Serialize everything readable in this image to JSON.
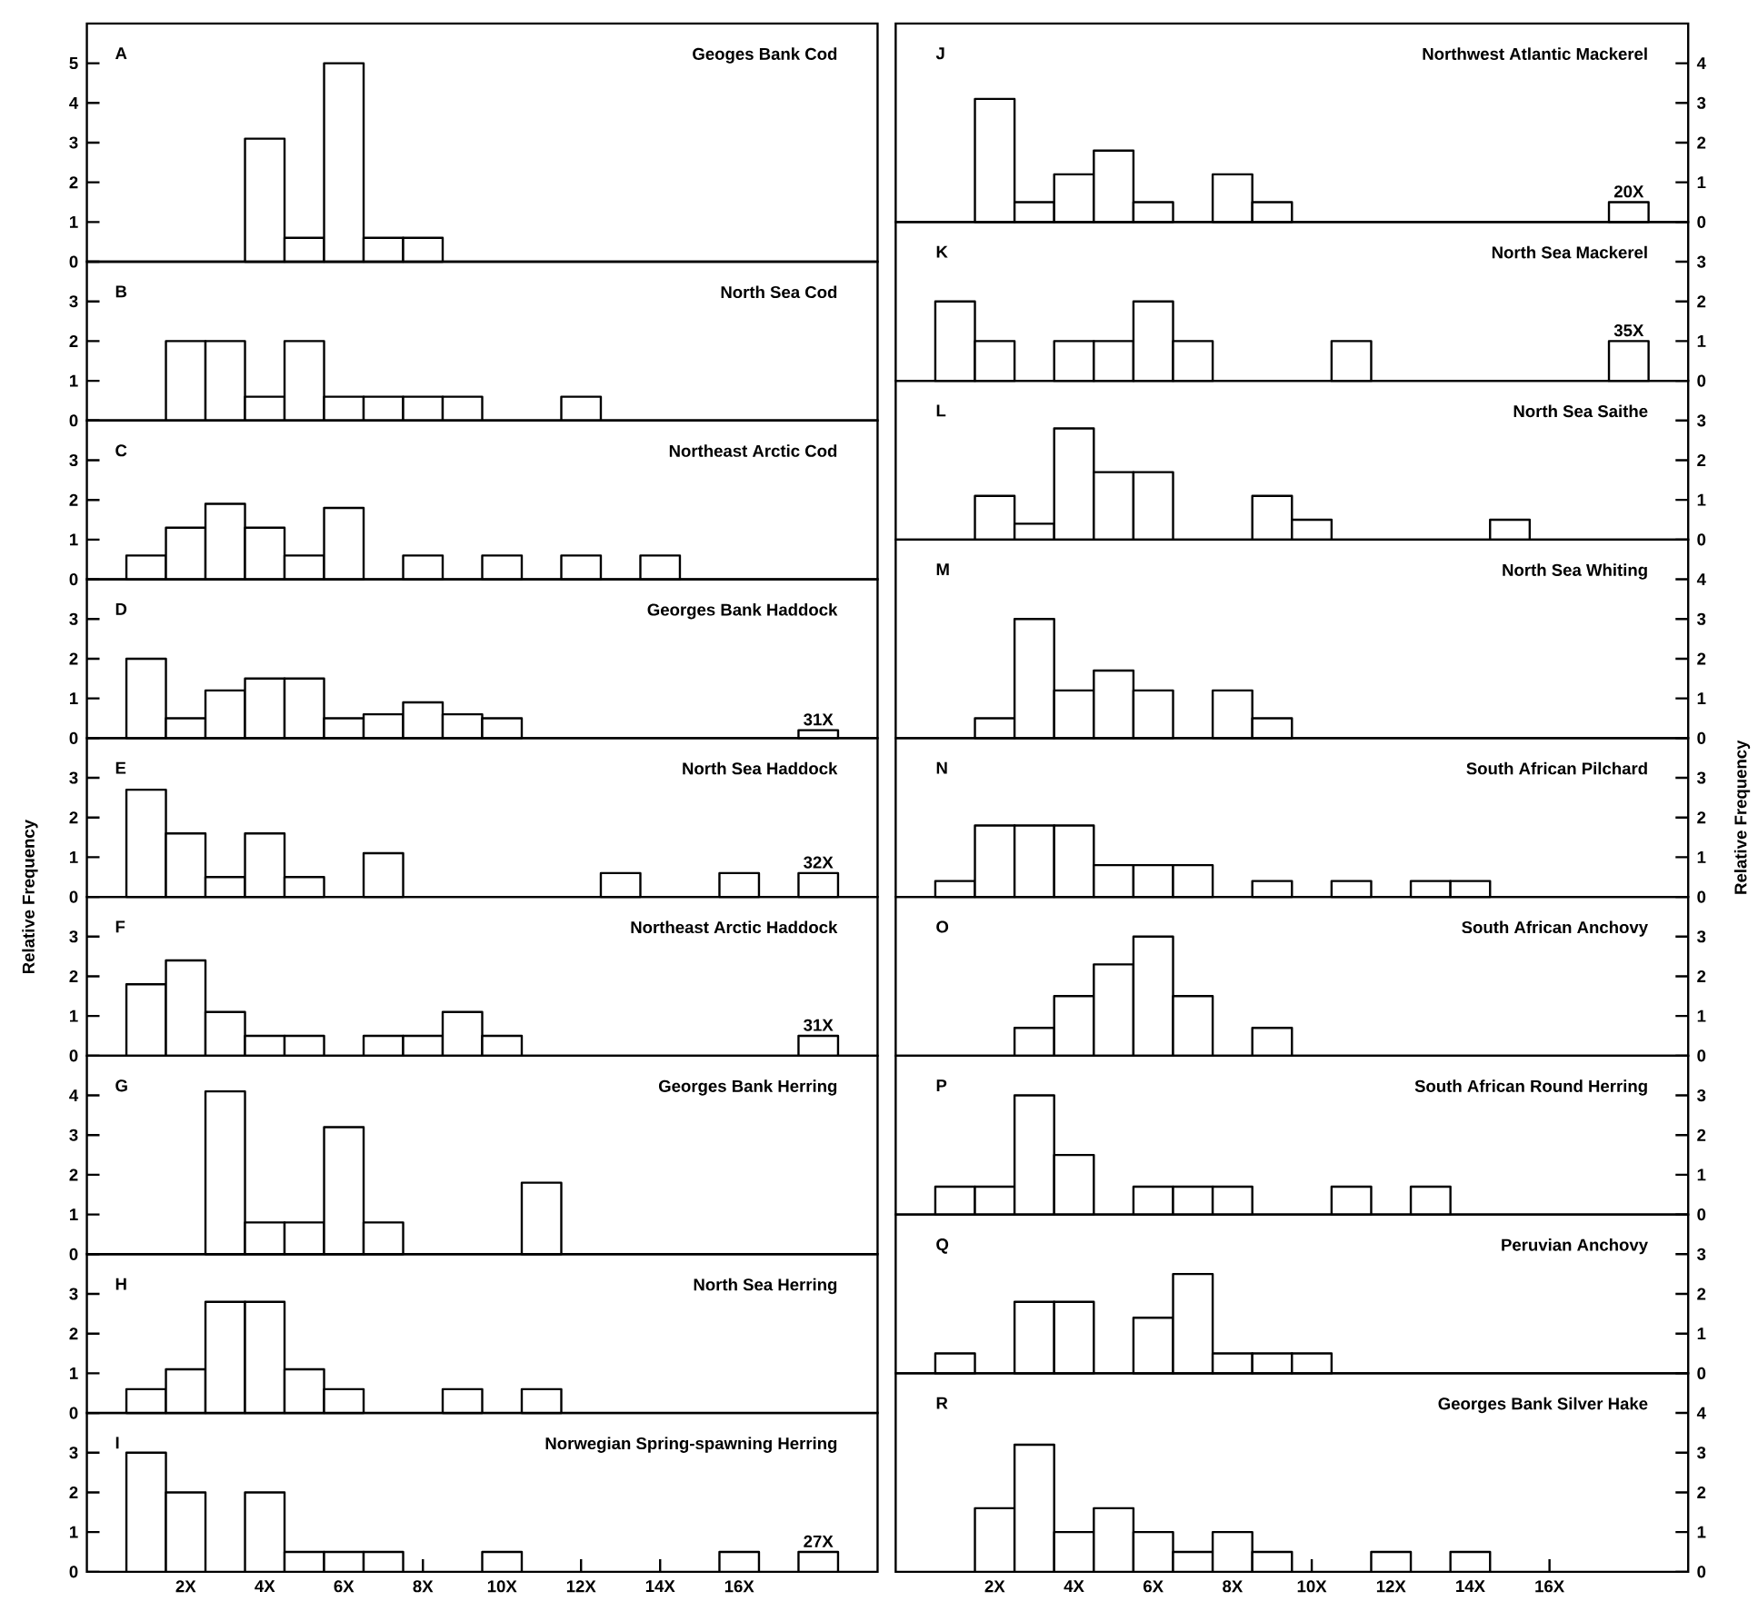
{
  "chart_data": [
    {
      "type": "histogram",
      "title": "A",
      "subtitle": "Geoges Bank Cod",
      "bins": [
        0.5,
        1.5,
        2.5,
        3.5,
        4.5,
        5.5,
        6.5,
        7.5,
        8.5,
        9.5,
        10.5,
        11.5,
        12.5,
        13.5,
        14.5,
        15.5,
        16.5,
        17.5,
        18.5
      ],
      "values": [
        null,
        null,
        null,
        3.1,
        0.6,
        5.0,
        0.6,
        0.6,
        null,
        null,
        null,
        null,
        null,
        null,
        null,
        null,
        null,
        null
      ],
      "xlim": [
        -0.5,
        19.5
      ],
      "ylim": [
        0,
        6
      ],
      "yticks": [
        0,
        1,
        2,
        3,
        4,
        5
      ],
      "tick_labels": "y"
    },
    {
      "type": "histogram",
      "title": "B",
      "subtitle": "North Sea Cod",
      "bins": [
        0.5,
        1.5,
        2.5,
        3.5,
        4.5,
        5.5,
        6.5,
        7.5,
        8.5,
        9.5,
        10.5,
        11.5,
        12.5,
        13.5,
        14.5,
        15.5,
        16.5,
        17.5,
        18.5
      ],
      "values": [
        null,
        2.0,
        2.0,
        0.6,
        2.0,
        0.6,
        0.6,
        0.6,
        0.6,
        null,
        null,
        0.6,
        null,
        null,
        null,
        null,
        null,
        null
      ],
      "xlim": [
        -0.5,
        19.5
      ],
      "ylim": [
        0,
        4
      ],
      "yticks": [
        0,
        1,
        2,
        3
      ],
      "tick_labels": "y"
    },
    {
      "type": "histogram",
      "title": "C",
      "subtitle": "Northeast Arctic Cod",
      "bins": [
        0.5,
        1.5,
        2.5,
        3.5,
        4.5,
        5.5,
        6.5,
        7.5,
        8.5,
        9.5,
        10.5,
        11.5,
        12.5,
        13.5,
        14.5,
        15.5,
        16.5,
        17.5,
        18.5
      ],
      "values": [
        0.6,
        1.3,
        1.9,
        1.3,
        0.6,
        1.8,
        null,
        0.6,
        null,
        0.6,
        null,
        0.6,
        null,
        0.6,
        null,
        null,
        null,
        null
      ],
      "xlim": [
        -0.5,
        19.5
      ],
      "ylim": [
        0,
        4
      ],
      "yticks": [
        0,
        1,
        2,
        3
      ],
      "tick_labels": "y"
    },
    {
      "type": "histogram",
      "title": "D",
      "subtitle": "Georges Bank Haddock",
      "bins": [
        0.5,
        1.5,
        2.5,
        3.5,
        4.5,
        5.5,
        6.5,
        7.5,
        8.5,
        9.5,
        10.5,
        11.5,
        12.5,
        13.5,
        14.5,
        15.5,
        16.5,
        17.5,
        18.5
      ],
      "values": [
        2.0,
        0.5,
        1.2,
        1.5,
        1.5,
        0.5,
        0.6,
        0.9,
        0.6,
        0.5,
        null,
        null,
        null,
        null,
        null,
        null,
        null,
        0.2
      ],
      "xlim": [
        -0.5,
        19.5
      ],
      "ylim": [
        0,
        4
      ],
      "yticks": [
        0,
        1,
        2,
        3
      ],
      "tick_labels": "y",
      "annotations": [
        "31X"
      ]
    },
    {
      "type": "histogram",
      "title": "E",
      "subtitle": "North Sea Haddock",
      "ylabel": "Relative Frequency",
      "bins": [
        0.5,
        1.5,
        2.5,
        3.5,
        4.5,
        5.5,
        6.5,
        7.5,
        8.5,
        9.5,
        10.5,
        11.5,
        12.5,
        13.5,
        14.5,
        15.5,
        16.5,
        17.5,
        18.5
      ],
      "values": [
        2.7,
        1.6,
        0.5,
        1.6,
        0.5,
        null,
        1.1,
        null,
        null,
        null,
        null,
        null,
        0.6,
        null,
        null,
        0.6,
        null,
        0.6
      ],
      "xlim": [
        -0.5,
        19.5
      ],
      "ylim": [
        0,
        4
      ],
      "yticks": [
        0,
        1,
        2,
        3
      ],
      "tick_labels": "y",
      "annotations": [
        "32X"
      ]
    },
    {
      "type": "histogram",
      "title": "F",
      "subtitle": "Northeast Arctic Haddock",
      "bins": [
        0.5,
        1.5,
        2.5,
        3.5,
        4.5,
        5.5,
        6.5,
        7.5,
        8.5,
        9.5,
        10.5,
        11.5,
        12.5,
        13.5,
        14.5,
        15.5,
        16.5,
        17.5,
        18.5
      ],
      "values": [
        1.8,
        2.4,
        1.1,
        0.5,
        0.5,
        null,
        0.5,
        0.5,
        1.1,
        0.5,
        null,
        null,
        null,
        null,
        null,
        null,
        null,
        0.5
      ],
      "xlim": [
        -0.5,
        19.5
      ],
      "ylim": [
        0,
        4
      ],
      "yticks": [
        0,
        1,
        2,
        3
      ],
      "tick_labels": "y",
      "annotations": [
        "31X"
      ]
    },
    {
      "type": "histogram",
      "title": "G",
      "subtitle": "Georges Bank Herring",
      "bins": [
        0.5,
        1.5,
        2.5,
        3.5,
        4.5,
        5.5,
        6.5,
        7.5,
        8.5,
        9.5,
        10.5,
        11.5,
        12.5,
        13.5,
        14.5,
        15.5,
        16.5,
        17.5,
        18.5
      ],
      "values": [
        null,
        null,
        4.1,
        0.8,
        0.8,
        3.2,
        0.8,
        null,
        null,
        null,
        1.8,
        null,
        null,
        null,
        null,
        null,
        null,
        null
      ],
      "xlim": [
        -0.5,
        19.5
      ],
      "ylim": [
        0,
        5
      ],
      "yticks": [
        0,
        1,
        2,
        3,
        4
      ],
      "tick_labels": "y"
    },
    {
      "type": "histogram",
      "title": "H",
      "subtitle": "North Sea Herring",
      "bins": [
        0.5,
        1.5,
        2.5,
        3.5,
        4.5,
        5.5,
        6.5,
        7.5,
        8.5,
        9.5,
        10.5,
        11.5,
        12.5,
        13.5,
        14.5,
        15.5,
        16.5,
        17.5,
        18.5
      ],
      "values": [
        0.6,
        1.1,
        2.8,
        2.8,
        1.1,
        0.6,
        null,
        null,
        0.6,
        null,
        0.6,
        null,
        null,
        null,
        null,
        null,
        null,
        null
      ],
      "xlim": [
        -0.5,
        19.5
      ],
      "ylim": [
        0,
        4
      ],
      "yticks": [
        0,
        1,
        2,
        3
      ],
      "tick_labels": "y"
    },
    {
      "type": "histogram",
      "title": "I",
      "subtitle": "Norwegian Spring-spawning Herring",
      "bins": [
        0.5,
        1.5,
        2.5,
        3.5,
        4.5,
        5.5,
        6.5,
        7.5,
        8.5,
        9.5,
        10.5,
        11.5,
        12.5,
        13.5,
        14.5,
        15.5,
        16.5,
        17.5,
        18.5
      ],
      "values": [
        3.0,
        2.0,
        null,
        2.0,
        0.5,
        0.5,
        0.5,
        null,
        null,
        0.5,
        null,
        null,
        null,
        null,
        null,
        0.5,
        null,
        0.5
      ],
      "xlim": [
        -0.5,
        19.5
      ],
      "ylim": [
        0,
        4
      ],
      "yticks": [
        0,
        1,
        2,
        3
      ],
      "xticks": [
        {
          "value": 2,
          "label": "2X"
        },
        {
          "value": 4,
          "label": "4X"
        },
        {
          "value": 6,
          "label": "6X"
        },
        {
          "value": 8,
          "label": "8X"
        },
        {
          "value": 10,
          "label": "10X"
        },
        {
          "value": 12,
          "label": "12X"
        },
        {
          "value": 14,
          "label": "14X"
        },
        {
          "value": 16,
          "label": "16X"
        }
      ],
      "annotations": [
        "27X"
      ]
    },
    {
      "type": "histogram",
      "title": "J",
      "subtitle": "Northwest Atlantic Mackerel",
      "bins": [
        0.5,
        1.5,
        2.5,
        3.5,
        4.5,
        5.5,
        6.5,
        7.5,
        8.5,
        9.5,
        10.5,
        11.5,
        12.5,
        13.5,
        14.5,
        15.5,
        16.5,
        17.5,
        18.5
      ],
      "values": [
        null,
        3.1,
        0.5,
        1.2,
        1.8,
        0.5,
        null,
        1.2,
        0.5,
        null,
        null,
        null,
        null,
        null,
        null,
        null,
        null,
        0.5
      ],
      "xlim": [
        -0.5,
        19.5
      ],
      "ylim": [
        0,
        5
      ],
      "yticks": [
        0,
        1,
        2,
        3,
        4
      ],
      "tick_labels": "y",
      "annotations": [
        "20X"
      ]
    },
    {
      "type": "histogram",
      "title": "K",
      "subtitle": "North Sea Mackerel",
      "bins": [
        0.5,
        1.5,
        2.5,
        3.5,
        4.5,
        5.5,
        6.5,
        7.5,
        8.5,
        9.5,
        10.5,
        11.5,
        12.5,
        13.5,
        14.5,
        15.5,
        16.5,
        17.5,
        18.5
      ],
      "values": [
        2.0,
        1.0,
        null,
        1.0,
        1.0,
        2.0,
        1.0,
        null,
        null,
        null,
        1.0,
        null,
        null,
        null,
        null,
        null,
        null,
        1.0
      ],
      "xlim": [
        -0.5,
        19.5
      ],
      "ylim": [
        0,
        4
      ],
      "yticks": [
        0,
        1,
        2,
        3
      ],
      "tick_labels": "y",
      "annotations": [
        "35X"
      ]
    },
    {
      "type": "histogram",
      "title": "L",
      "subtitle": "North Sea Saithe",
      "bins": [
        0.5,
        1.5,
        2.5,
        3.5,
        4.5,
        5.5,
        6.5,
        7.5,
        8.5,
        9.5,
        10.5,
        11.5,
        12.5,
        13.5,
        14.5,
        15.5,
        16.5,
        17.5,
        18.5
      ],
      "values": [
        null,
        1.1,
        0.4,
        2.8,
        1.7,
        1.7,
        null,
        null,
        1.1,
        0.5,
        null,
        null,
        null,
        null,
        0.5,
        null,
        null,
        null
      ],
      "xlim": [
        -0.5,
        19.5
      ],
      "ylim": [
        0,
        4
      ],
      "yticks": [
        0,
        1,
        2,
        3
      ],
      "tick_labels": "y"
    },
    {
      "type": "histogram",
      "title": "M",
      "subtitle": "North Sea Whiting",
      "bins": [
        0.5,
        1.5,
        2.5,
        3.5,
        4.5,
        5.5,
        6.5,
        7.5,
        8.5,
        9.5,
        10.5,
        11.5,
        12.5,
        13.5,
        14.5,
        15.5,
        16.5,
        17.5,
        18.5
      ],
      "values": [
        null,
        0.5,
        3.0,
        1.2,
        1.7,
        1.2,
        null,
        1.2,
        0.5,
        null,
        null,
        null,
        null,
        null,
        null,
        null,
        null,
        null
      ],
      "xlim": [
        -0.5,
        19.5
      ],
      "ylim": [
        0,
        5
      ],
      "yticks": [
        0,
        1,
        2,
        3,
        4
      ],
      "tick_labels": "y"
    },
    {
      "type": "histogram",
      "title": "N",
      "subtitle": "South African Pilchard",
      "ylabel": "Relative Frequency",
      "bins": [
        0.5,
        1.5,
        2.5,
        3.5,
        4.5,
        5.5,
        6.5,
        7.5,
        8.5,
        9.5,
        10.5,
        11.5,
        12.5,
        13.5,
        14.5,
        15.5,
        16.5,
        17.5,
        18.5
      ],
      "values": [
        0.4,
        1.8,
        1.8,
        1.8,
        0.8,
        0.8,
        0.8,
        null,
        0.4,
        null,
        0.4,
        null,
        0.4,
        0.4,
        null,
        null,
        null,
        null
      ],
      "xlim": [
        -0.5,
        19.5
      ],
      "ylim": [
        0,
        4
      ],
      "yticks": [
        0,
        1,
        2,
        3
      ],
      "tick_labels": "y"
    },
    {
      "type": "histogram",
      "title": "O",
      "subtitle": "South African Anchovy",
      "bins": [
        0.5,
        1.5,
        2.5,
        3.5,
        4.5,
        5.5,
        6.5,
        7.5,
        8.5,
        9.5,
        10.5,
        11.5,
        12.5,
        13.5,
        14.5,
        15.5,
        16.5,
        17.5,
        18.5
      ],
      "values": [
        null,
        null,
        0.7,
        1.5,
        2.3,
        3.0,
        1.5,
        null,
        0.7,
        null,
        null,
        null,
        null,
        null,
        null,
        null,
        null,
        null
      ],
      "xlim": [
        -0.5,
        19.5
      ],
      "ylim": [
        0,
        4
      ],
      "yticks": [
        0,
        1,
        2,
        3
      ],
      "tick_labels": "y"
    },
    {
      "type": "histogram",
      "title": "P",
      "subtitle": "South African Round Herring",
      "bins": [
        0.5,
        1.5,
        2.5,
        3.5,
        4.5,
        5.5,
        6.5,
        7.5,
        8.5,
        9.5,
        10.5,
        11.5,
        12.5,
        13.5,
        14.5,
        15.5,
        16.5,
        17.5,
        18.5
      ],
      "values": [
        0.7,
        0.7,
        3.0,
        1.5,
        null,
        0.7,
        0.7,
        0.7,
        null,
        null,
        0.7,
        null,
        0.7,
        null,
        null,
        null,
        null,
        null
      ],
      "xlim": [
        -0.5,
        19.5
      ],
      "ylim": [
        0,
        4
      ],
      "yticks": [
        0,
        1,
        2,
        3
      ],
      "tick_labels": "y"
    },
    {
      "type": "histogram",
      "title": "Q",
      "subtitle": "Peruvian Anchovy",
      "bins": [
        0.5,
        1.5,
        2.5,
        3.5,
        4.5,
        5.5,
        6.5,
        7.5,
        8.5,
        9.5,
        10.5,
        11.5,
        12.5,
        13.5,
        14.5,
        15.5,
        16.5,
        17.5,
        18.5
      ],
      "values": [
        0.5,
        null,
        1.8,
        1.8,
        null,
        1.4,
        2.5,
        0.5,
        0.5,
        0.5,
        null,
        null,
        null,
        null,
        null,
        null,
        null,
        null
      ],
      "xlim": [
        -0.5,
        19.5
      ],
      "ylim": [
        0,
        4
      ],
      "yticks": [
        0,
        1,
        2,
        3
      ],
      "tick_labels": "y"
    },
    {
      "type": "histogram",
      "title": "R",
      "subtitle": "Georges Bank Silver Hake",
      "bins": [
        0.5,
        1.5,
        2.5,
        3.5,
        4.5,
        5.5,
        6.5,
        7.5,
        8.5,
        9.5,
        10.5,
        11.5,
        12.5,
        13.5,
        14.5,
        15.5,
        16.5,
        17.5,
        18.5
      ],
      "values": [
        null,
        1.6,
        3.2,
        1.0,
        1.6,
        1.0,
        0.5,
        1.0,
        0.5,
        null,
        null,
        0.5,
        null,
        0.5,
        null,
        null,
        null,
        null
      ],
      "xlim": [
        -0.5,
        19.5
      ],
      "ylim": [
        0,
        5
      ],
      "yticks": [
        0,
        1,
        2,
        3,
        4
      ],
      "xticks": [
        {
          "value": 2,
          "label": "2X"
        },
        {
          "value": 4,
          "label": "4X"
        },
        {
          "value": 6,
          "label": "6X"
        },
        {
          "value": 8,
          "label": "8X"
        },
        {
          "value": 10,
          "label": "10X"
        },
        {
          "value": 12,
          "label": "12X"
        },
        {
          "value": 14,
          "label": "14X"
        },
        {
          "value": 16,
          "label": "16X"
        }
      ]
    }
  ]
}
